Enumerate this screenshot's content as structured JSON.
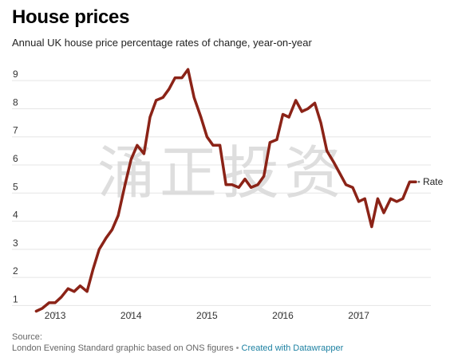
{
  "header": {
    "title": "House prices",
    "subtitle": "Annual UK house price percentage rates of change, year-on-year"
  },
  "footer": {
    "source_label": "Source:",
    "source_text": "London Evening Standard graphic based on ONS figures",
    "separator": "•",
    "credit_link": "Created with Datawrapper"
  },
  "watermark": "涌正投资",
  "colors": {
    "line": "#8b2317",
    "grid": "#e5e5e5",
    "text": "#333333",
    "link": "#1d81a2",
    "watermark": "#d9d9d9"
  },
  "chart_data": {
    "type": "line",
    "title": "House prices",
    "subtitle": "Annual UK house price percentage rates of change, year-on-year",
    "xlabel": "",
    "ylabel": "",
    "ylim": [
      0.7,
      9.6
    ],
    "yticks": [
      1,
      2,
      3,
      4,
      5,
      6,
      7,
      8,
      9
    ],
    "xticks": [
      {
        "label": "2013",
        "x": 2013.0
      },
      {
        "label": "2014",
        "x": 2014.0
      },
      {
        "label": "2015",
        "x": 2015.0
      },
      {
        "label": "2016",
        "x": 2016.0
      },
      {
        "label": "2017",
        "x": 2017.0
      }
    ],
    "xlim": [
      2012.62,
      2017.95
    ],
    "grid": true,
    "legend": "none",
    "series": [
      {
        "name": "Rate",
        "color": "#8b2317",
        "x": [
          2012.75,
          2012.83,
          2012.92,
          2013.0,
          2013.08,
          2013.17,
          2013.25,
          2013.33,
          2013.42,
          2013.5,
          2013.58,
          2013.67,
          2013.75,
          2013.83,
          2013.92,
          2014.0,
          2014.08,
          2014.17,
          2014.25,
          2014.33,
          2014.42,
          2014.5,
          2014.58,
          2014.67,
          2014.75,
          2014.83,
          2014.92,
          2015.0,
          2015.08,
          2015.17,
          2015.25,
          2015.33,
          2015.42,
          2015.5,
          2015.58,
          2015.67,
          2015.75,
          2015.83,
          2015.92,
          2016.0,
          2016.08,
          2016.17,
          2016.25,
          2016.33,
          2016.42,
          2016.5,
          2016.58,
          2016.67,
          2016.75,
          2016.83,
          2016.92,
          2017.0,
          2017.08,
          2017.17,
          2017.25,
          2017.33,
          2017.42,
          2017.5,
          2017.58,
          2017.67,
          2017.75
        ],
        "y": [
          0.8,
          0.9,
          1.1,
          1.1,
          1.3,
          1.6,
          1.5,
          1.7,
          1.5,
          2.3,
          3.0,
          3.4,
          3.7,
          4.2,
          5.3,
          6.2,
          6.7,
          6.4,
          7.7,
          8.3,
          8.4,
          8.7,
          9.1,
          9.1,
          9.4,
          8.4,
          7.7,
          7.0,
          6.7,
          6.7,
          5.3,
          5.3,
          5.2,
          5.5,
          5.2,
          5.3,
          5.6,
          6.8,
          6.9,
          7.8,
          7.7,
          8.3,
          7.9,
          8.0,
          8.2,
          7.5,
          6.5,
          6.1,
          5.7,
          5.3,
          5.2,
          4.7,
          4.8,
          3.8,
          4.8,
          4.3,
          4.8,
          4.7,
          4.8,
          5.4,
          5.4
        ]
      }
    ],
    "end_label": "Rate"
  }
}
